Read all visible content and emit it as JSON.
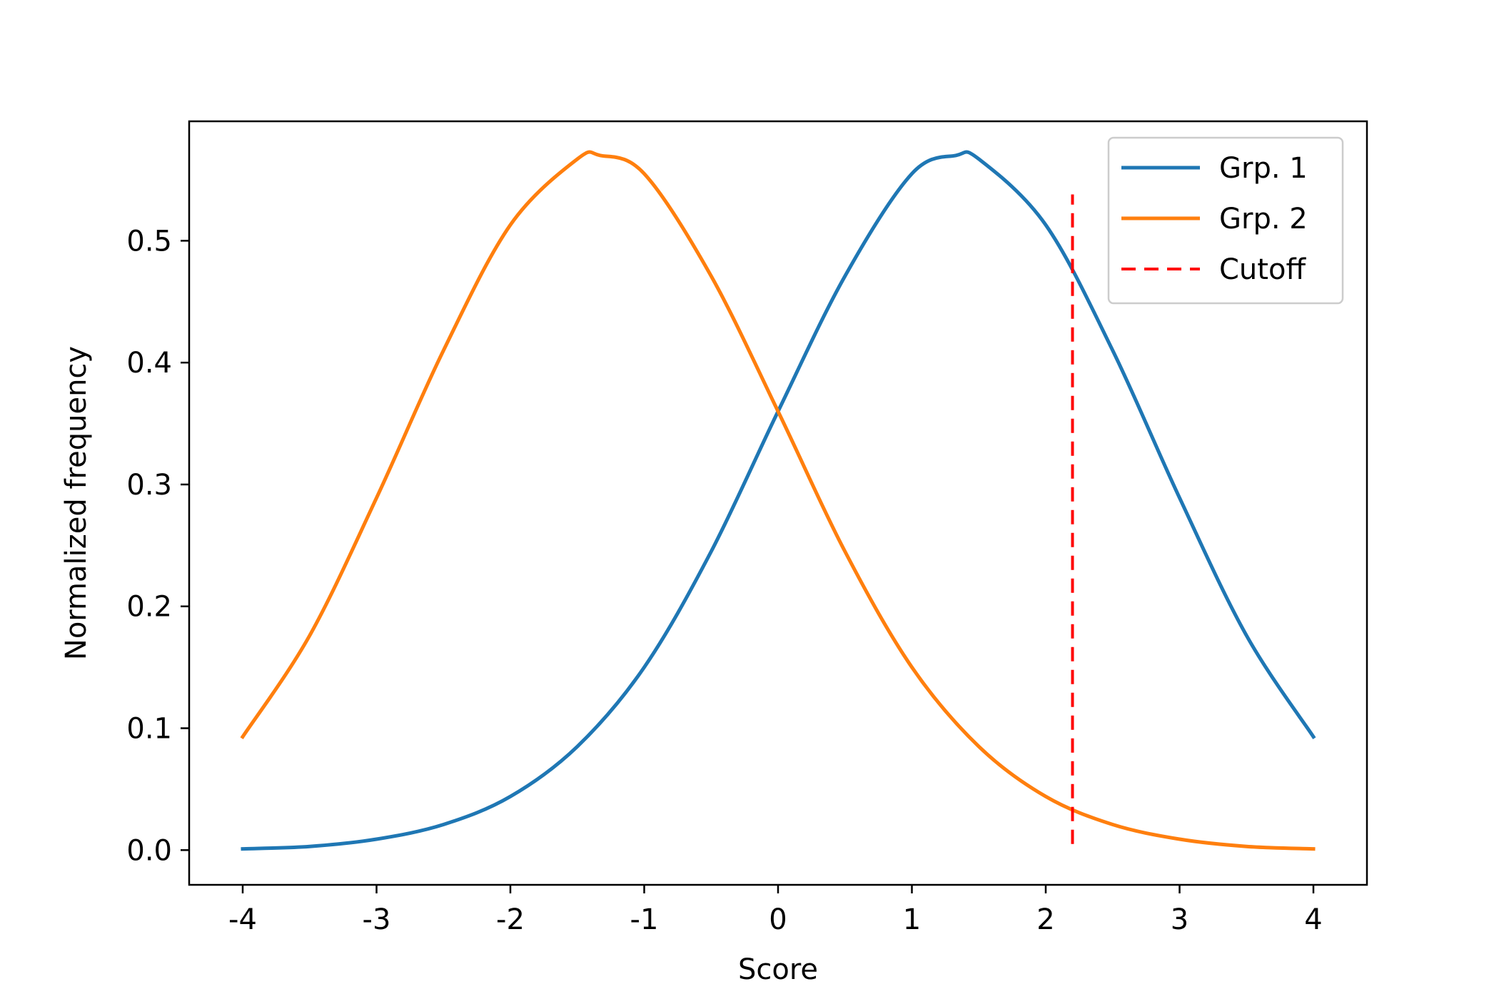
{
  "chart_data": {
    "type": "line",
    "title": "",
    "xlabel": "Score",
    "ylabel": "Normalized frequency",
    "xlim": [
      -4.4,
      4.4
    ],
    "ylim": [
      -0.0285,
      0.598
    ],
    "xticks": [
      -4,
      -3,
      -2,
      -1,
      0,
      1,
      2,
      3,
      4
    ],
    "xtick_labels": [
      "-4",
      "-3",
      "-2",
      "-1",
      "0",
      "1",
      "2",
      "3",
      "4"
    ],
    "yticks": [
      0.0,
      0.1,
      0.2,
      0.3,
      0.4,
      0.5
    ],
    "ytick_labels": [
      "0.0",
      "0.1",
      "0.2",
      "0.3",
      "0.4",
      "0.5"
    ],
    "grid": false,
    "legend_position": "top-right",
    "series": [
      {
        "name": "Grp. 1",
        "color": "#1f77b4",
        "style": "solid",
        "x": [
          -4,
          -3.5,
          -3,
          -2.5,
          -2,
          -1.5,
          -1,
          -0.5,
          0,
          0.5,
          1,
          1.33,
          1.5,
          2,
          2.5,
          3,
          3.5,
          4
        ],
        "y": [
          0.001,
          0.003,
          0.009,
          0.021,
          0.044,
          0.085,
          0.15,
          0.245,
          0.36,
          0.471,
          0.555,
          0.57,
          0.567,
          0.513,
          0.41,
          0.289,
          0.176,
          0.093
        ]
      },
      {
        "name": "Grp. 2",
        "color": "#ff7f0e",
        "style": "solid",
        "x": [
          -4,
          -3.5,
          -3,
          -2.5,
          -2,
          -1.5,
          -1.33,
          -1,
          -0.5,
          0,
          0.5,
          1,
          1.5,
          2,
          2.5,
          3,
          3.5,
          4
        ],
        "y": [
          0.093,
          0.176,
          0.289,
          0.41,
          0.513,
          0.567,
          0.57,
          0.555,
          0.471,
          0.36,
          0.245,
          0.15,
          0.085,
          0.044,
          0.021,
          0.009,
          0.003,
          0.001
        ]
      },
      {
        "name": "Cutoff",
        "color": "#ff0000",
        "style": "dashed",
        "x": [
          2.2,
          2.2
        ],
        "y": [
          0.005,
          0.538
        ]
      }
    ]
  }
}
